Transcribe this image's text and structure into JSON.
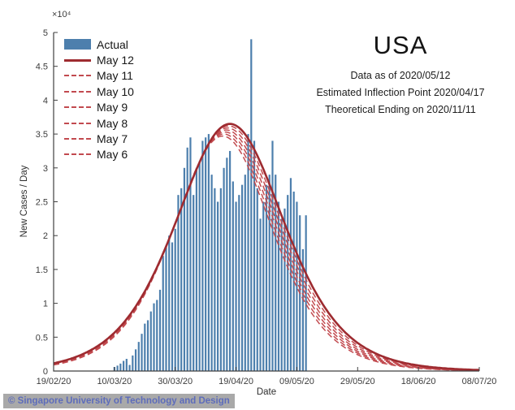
{
  "title": "USA",
  "annotations": [
    "Data as of 2020/05/12",
    "Estimated Inflection Point 2020/04/17",
    "Theoretical Ending on 2020/11/11"
  ],
  "footer": {
    "text": "© Singapore University of Technology and Design"
  },
  "colors": {
    "bar": "#4d7fad",
    "solid_line": "#9e2b30",
    "dashed_line": "#c24a4f",
    "axis": "#404040",
    "tick_text": "#3c3c3c",
    "footer_bg": "#a9a9a9",
    "footer_text": "#5d6cbb"
  },
  "chart_data": {
    "type": "combo-bar-line",
    "title": "USA",
    "xlabel": "Date",
    "ylabel": "New Cases / Day",
    "y_multiplier_label": "×10⁴",
    "ylim": [
      0,
      50000
    ],
    "x_max": 140,
    "x_range": [
      "19/02/20",
      "08/07/20"
    ],
    "grid": false,
    "legend_position": "top-left-inside",
    "x_ticks": [
      {
        "label": "19/02/20",
        "day": 0
      },
      {
        "label": "10/03/20",
        "day": 20
      },
      {
        "label": "30/03/20",
        "day": 40
      },
      {
        "label": "19/04/20",
        "day": 60
      },
      {
        "label": "09/05/20",
        "day": 80
      },
      {
        "label": "29/05/20",
        "day": 100
      },
      {
        "label": "18/06/20",
        "day": 120
      },
      {
        "label": "08/07/20",
        "day": 140
      }
    ],
    "y_ticks": [
      {
        "label": "0",
        "value": 0
      },
      {
        "label": "0.5",
        "value": 5000
      },
      {
        "label": "1",
        "value": 10000
      },
      {
        "label": "1.5",
        "value": 15000
      },
      {
        "label": "2",
        "value": 20000
      },
      {
        "label": "2.5",
        "value": 25000
      },
      {
        "label": "3",
        "value": 30000
      },
      {
        "label": "3.5",
        "value": 35000
      },
      {
        "label": "4",
        "value": 40000
      },
      {
        "label": "4.5",
        "value": 45000
      },
      {
        "label": "5",
        "value": 50000
      }
    ],
    "bars": {
      "name": "Actual",
      "start_date": "10/03/20",
      "start_day": 20,
      "values": [
        600,
        800,
        1100,
        1500,
        1800,
        900,
        2300,
        3200,
        4300,
        5500,
        7000,
        7500,
        8800,
        10000,
        10500,
        12000,
        17000,
        18500,
        20000,
        19000,
        21000,
        26000,
        27000,
        30000,
        33000,
        34500,
        26000,
        30000,
        31000,
        34000,
        34500,
        35000,
        29000,
        27000,
        25000,
        27000,
        30000,
        31500,
        32500,
        28000,
        25000,
        26000,
        27500,
        29000,
        35000,
        49000,
        34000,
        27000,
        22500,
        25000,
        27500,
        29000,
        34000,
        29000,
        25000,
        22500,
        24000,
        26000,
        28500,
        26500,
        25000,
        23000,
        18000,
        23000
      ]
    },
    "series": [
      {
        "label": "May 12",
        "style": "solid",
        "peak": 36500,
        "peak_day": 58.0,
        "tau": 12.0
      },
      {
        "label": "May 11",
        "style": "dashed",
        "peak": 36200,
        "peak_day": 57.6,
        "tau": 11.8
      },
      {
        "label": "May 10",
        "style": "dashed",
        "peak": 35900,
        "peak_day": 57.2,
        "tau": 11.65
      },
      {
        "label": "May 9",
        "style": "dashed",
        "peak": 35600,
        "peak_day": 56.8,
        "tau": 11.5
      },
      {
        "label": "May 8",
        "style": "dashed",
        "peak": 35300,
        "peak_day": 56.4,
        "tau": 11.35
      },
      {
        "label": "May 7",
        "style": "dashed",
        "peak": 35000,
        "peak_day": 56.0,
        "tau": 11.2
      },
      {
        "label": "May 6",
        "style": "dashed",
        "peak": 34700,
        "peak_day": 55.6,
        "tau": 11.05
      }
    ],
    "legend": [
      {
        "label": "Actual",
        "swatch": "bar"
      },
      {
        "label": "May 12",
        "swatch": "solid"
      },
      {
        "label": "May 11",
        "swatch": "dashed"
      },
      {
        "label": "May 10",
        "swatch": "dashed"
      },
      {
        "label": "May 9",
        "swatch": "dashed"
      },
      {
        "label": "May 8",
        "swatch": "dashed"
      },
      {
        "label": "May 7",
        "swatch": "dashed"
      },
      {
        "label": "May 6",
        "swatch": "dashed"
      }
    ]
  }
}
